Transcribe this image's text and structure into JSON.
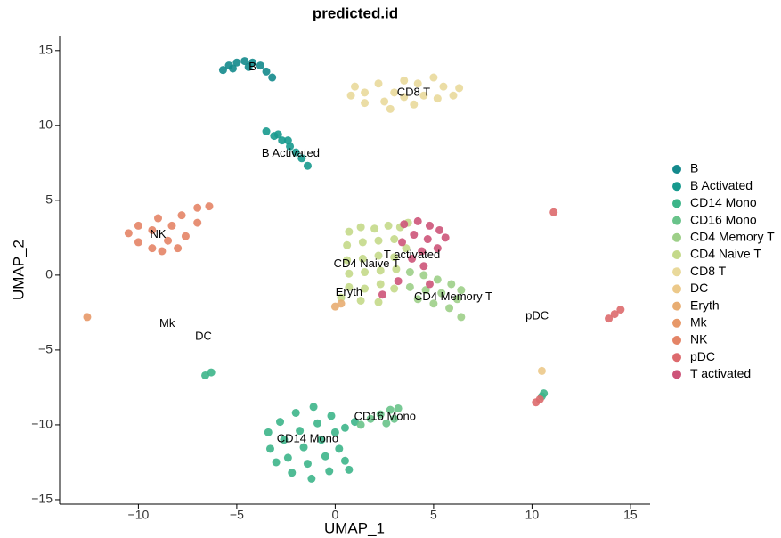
{
  "chart_data": {
    "type": "scatter",
    "title": "predicted.id",
    "x_label": "UMAP_1",
    "y_label": "UMAP_2",
    "xlim": [
      -14,
      16
    ],
    "ylim": [
      -15.3,
      16
    ],
    "xticks": [
      {
        "value": -10,
        "label": "−10"
      },
      {
        "value": -5,
        "label": "−5"
      },
      0,
      5,
      10,
      15
    ],
    "yticks": [
      {
        "value": -15,
        "label": "−15"
      },
      {
        "value": -10,
        "label": "−10"
      },
      {
        "value": -5,
        "label": "−5"
      },
      0,
      5,
      10,
      15
    ],
    "legend": "right",
    "series": [
      {
        "name": "B",
        "color": "#13898c",
        "x": [
          -5.7,
          -5.4,
          -5.0,
          -4.6,
          -4.2,
          -3.8,
          -3.5,
          -3.2,
          -5.2,
          -4.4
        ],
        "y": [
          13.7,
          14.0,
          14.2,
          14.3,
          14.2,
          14.0,
          13.6,
          13.2,
          13.8,
          13.9
        ]
      },
      {
        "name": "B Activated",
        "color": "#179a8e",
        "x": [
          -3.5,
          -3.1,
          -2.7,
          -2.3,
          -2.0,
          -1.7,
          -1.4,
          -2.9,
          -2.4
        ],
        "y": [
          9.6,
          9.3,
          9.0,
          8.6,
          8.2,
          7.8,
          7.3,
          9.4,
          9.0
        ]
      },
      {
        "name": "CD14 Mono",
        "color": "#3db589",
        "x": [
          -3.4,
          -3.3,
          -3.0,
          -2.8,
          -2.6,
          -2.4,
          -2.2,
          -2.0,
          -1.8,
          -1.6,
          -1.4,
          -1.2,
          -1.1,
          -0.9,
          -0.7,
          -0.5,
          -0.3,
          -0.2,
          0,
          0.2,
          0.5,
          0.7,
          0.5,
          1.0,
          -6.3,
          -6.6,
          10.6,
          10.5
        ],
        "y": [
          -10.5,
          -11.6,
          -12.5,
          -9.8,
          -11,
          -12.2,
          -13.2,
          -9.2,
          -10.4,
          -11.5,
          -12.6,
          -13.6,
          -8.8,
          -9.9,
          -11,
          -12.1,
          -13.1,
          -9.4,
          -10.5,
          -11.6,
          -12.4,
          -13.0,
          -10.2,
          -9.8,
          -6.5,
          -6.7,
          -7.9,
          -8.1
        ]
      },
      {
        "name": "CD16 Mono",
        "color": "#69c38a",
        "x": [
          1.8,
          2.3,
          2.8,
          3.2,
          2.6,
          3.0,
          1.3
        ],
        "y": [
          -9.6,
          -9.3,
          -9.0,
          -8.9,
          -9.9,
          -9.6,
          -10.0
        ]
      },
      {
        "name": "CD4 Memory T",
        "color": "#9dcf88",
        "x": [
          3.8,
          4.5,
          5.2,
          5.9,
          6.4,
          3.8,
          4.6,
          5.4,
          6.2,
          4.2,
          5.0,
          5.8,
          6.4
        ],
        "y": [
          0.2,
          0.0,
          -0.3,
          -0.6,
          -1.0,
          -0.8,
          -1.0,
          -1.2,
          -1.6,
          -1.6,
          -1.9,
          -2.2,
          -2.8
        ]
      },
      {
        "name": "CD4 Naive T",
        "color": "#c4d98a",
        "x": [
          0.7,
          1.3,
          2,
          2.7,
          3.3,
          0.6,
          1.4,
          2.2,
          3,
          0.6,
          1.4,
          2.2,
          3,
          0.7,
          1.5,
          2.3,
          3.1,
          0.7,
          1.5,
          2.3,
          3.0,
          1.3,
          2.2,
          0.3,
          3.7,
          3.6
        ],
        "y": [
          2.9,
          3.2,
          3.1,
          3.3,
          3.2,
          2.0,
          2.2,
          2.3,
          2.4,
          1.0,
          1.1,
          1.3,
          1.2,
          0.1,
          0.2,
          0.3,
          0.4,
          -0.8,
          -0.9,
          -0.6,
          -0.9,
          -1.7,
          -1.8,
          -1.5,
          3.5,
          1.8
        ]
      },
      {
        "name": "CD8 T",
        "color": "#e9d99b",
        "x": [
          0.8,
          1.5,
          1.5,
          2.2,
          2.5,
          3,
          3.5,
          3.5,
          4.2,
          4.5,
          5,
          5.5,
          6,
          6.3,
          1,
          2.8,
          4,
          5.2
        ],
        "y": [
          12.0,
          12.2,
          11.5,
          12.8,
          11.6,
          12.2,
          13,
          11.9,
          12.8,
          12.0,
          13.2,
          12.6,
          12.0,
          12.5,
          12.6,
          11.1,
          11.4,
          11.8
        ]
      },
      {
        "name": "DC",
        "color": "#ecc98a",
        "x": [
          10.5
        ],
        "y": [
          -6.4
        ]
      },
      {
        "name": "Eryth",
        "color": "#e8ad72",
        "x": [
          0.0,
          0.3
        ],
        "y": [
          -2.1,
          -1.9
        ]
      },
      {
        "name": "Mk",
        "color": "#e79868",
        "x": [
          -12.6
        ],
        "y": [
          -2.8
        ]
      },
      {
        "name": "NK",
        "color": "#e48466",
        "x": [
          -10.5,
          -10,
          -10,
          -9.3,
          -9.3,
          -9,
          -8.5,
          -8.3,
          -7.8,
          -7.6,
          -7,
          -7,
          -6.4,
          -8.8,
          -8
        ],
        "y": [
          2.8,
          2.2,
          3.3,
          1.8,
          3,
          3.8,
          2.3,
          3.3,
          4,
          2.6,
          3.5,
          4.5,
          4.6,
          1.6,
          1.8
        ]
      },
      {
        "name": "pDC",
        "color": "#dd6a6d",
        "x": [
          13.9,
          14.2,
          14.5,
          10.2,
          10.4,
          11.1
        ],
        "y": [
          -2.9,
          -2.6,
          -2.3,
          -8.5,
          -8.3,
          4.2
        ]
      },
      {
        "name": "T activated",
        "color": "#cd5479",
        "x": [
          3.5,
          4.2,
          4.8,
          5.3,
          5.6,
          4.0,
          4.7,
          5.2,
          4.4,
          3.4,
          3.9,
          4.5,
          3.2,
          2.4,
          4.8
        ],
        "y": [
          3.4,
          3.6,
          3.3,
          3.0,
          2.5,
          2.7,
          2.4,
          1.8,
          1.6,
          2.2,
          1.1,
          0.6,
          -0.4,
          -1.3,
          -0.6
        ]
      }
    ],
    "annotations": [
      {
        "text": "B",
        "x": -4.2,
        "y": 13.87
      },
      {
        "text": "CD8 T",
        "x": 3.98,
        "y": 12.2
      },
      {
        "text": "B Activated",
        "x": -2.26,
        "y": 8.1
      },
      {
        "text": "NK",
        "x": -9.0,
        "y": 2.7
      },
      {
        "text": "CD4 Naive T",
        "x": 1.6,
        "y": 0.74
      },
      {
        "text": "T activated",
        "x": 3.9,
        "y": 1.34
      },
      {
        "text": "Eryth",
        "x": 0.7,
        "y": -1.16
      },
      {
        "text": "CD4 Memory T",
        "x": 6.0,
        "y": -1.46
      },
      {
        "text": "pDC",
        "x": 10.26,
        "y": -2.76
      },
      {
        "text": "Mk",
        "x": -8.54,
        "y": -3.24
      },
      {
        "text": "DC",
        "x": -6.69,
        "y": -4.13
      },
      {
        "text": "CD16 Mono",
        "x": 2.53,
        "y": -9.48
      },
      {
        "text": "CD14 Mono",
        "x": -1.4,
        "y": -10.96
      }
    ]
  }
}
